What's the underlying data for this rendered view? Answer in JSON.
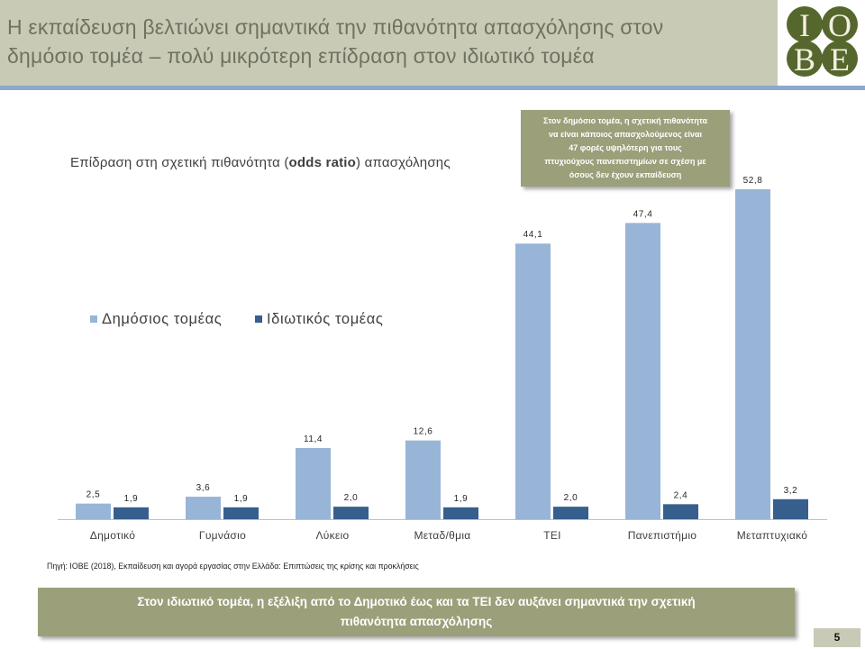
{
  "header": {
    "title_lines": [
      "Η εκπαίδευση βελτιώνει σημαντικά την πιθανότητα απασχόλησης στον",
      "δημόσιο τομέα – πολύ μικρότερη επίδραση στον ιδιωτικό τομέα"
    ]
  },
  "logo": {
    "letters": [
      "I",
      "O",
      "B",
      "E"
    ]
  },
  "callout": {
    "lines": [
      "Στον δημόσιο τομέα, η σχετική πιθανότητα",
      "να είναι κάποιος απασχολούμενος είναι",
      "47 φορές υψηλότερη για τους",
      "πτυχιούχους πανεπιστημίων σε σχέση με",
      "όσους δεν έχουν εκπαίδευση"
    ]
  },
  "source_note": "Πηγή: IOBE (2018), Εκπαίδευση και αγορά εργασίας στην Ελλάδα: Επιπτώσεις της κρίσης και προκλήσεις",
  "footer_box": {
    "lines": [
      "Στον ιδιωτικό τομέα, η εξέλιξη από το Δημοτικό έως και τα ΤΕΙ δεν αυξάνει σημαντικά την σχετική",
      "πιθανότητα απασχόλησης"
    ]
  },
  "page_number": "5",
  "colors": {
    "header_bg": "#c8cab6",
    "title_text": "#6e725f",
    "header_rule": "#8ca8cc",
    "logo_green": "#56672d",
    "accent_box": "#9ba07a",
    "page_number_bg": "#c8cab6"
  },
  "chart_data": {
    "type": "bar",
    "title": "Επίδραση στη σχετική πιθανότητα (odds ratio) απασχόλησης",
    "title_bold": "odds ratio",
    "categories": [
      "Δημοτικό",
      "Γυμνάσιο",
      "Λύκειο",
      "Μεταδ/θμια",
      "ΤΕΙ",
      "Πανεπιστήμιο",
      "Μεταπτυχιακό"
    ],
    "series": [
      {
        "name": "Δημόσιος τομέας",
        "color": "#98b5d7",
        "values": [
          2.5,
          3.6,
          11.4,
          12.6,
          44.1,
          47.4,
          52.8
        ],
        "data_labels": [
          "2,5",
          "3,6",
          "11,4",
          "12,6",
          "44,1",
          "47,4",
          "52,8"
        ]
      },
      {
        "name": "Ιδιωτικός τομέας",
        "color": "#365f8d",
        "values": [
          1.9,
          1.9,
          2.0,
          1.9,
          2.0,
          2.4,
          3.2
        ],
        "data_labels": [
          "1,9",
          "1,9",
          "2,0",
          "1,9",
          "2,0",
          "2,4",
          "3,2"
        ]
      }
    ],
    "ylim": [
      0,
      60
    ],
    "grid": false,
    "legend_position": "middle-left"
  }
}
